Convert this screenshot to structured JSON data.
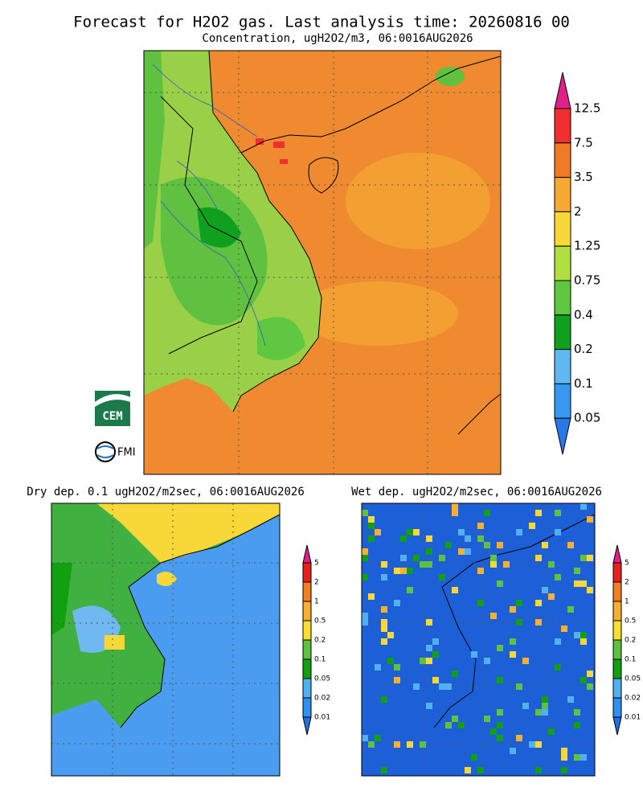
{
  "header": {
    "title": "Forecast for H2O2 gas. Last analysis time: 20260816 00",
    "subtitle": "Concentration, ugH2O2/m3, 06:0016AUG2026"
  },
  "main_map": {
    "colorbar": {
      "labels": [
        "12.5",
        "7.5",
        "3.5",
        "2",
        "1.25",
        "0.75",
        "0.4",
        "0.2",
        "0.1",
        "0.05"
      ],
      "colors": [
        "#e0208a",
        "#f03030",
        "#f07a28",
        "#f5a832",
        "#f8d838",
        "#b0e040",
        "#60c840",
        "#10a020",
        "#60b8f0",
        "#3898f0",
        "#2878e8"
      ]
    }
  },
  "logos": {
    "cem": "CEM",
    "fmi": "FMI"
  },
  "dry_dep": {
    "title": "Dry dep. 0.1 ugH2O2/m2sec, 06:0016AUG2026",
    "colorbar": {
      "labels": [
        "5",
        "2",
        "1",
        "0.5",
        "0.2",
        "0.1",
        "0.05",
        "0.02",
        "0.01"
      ],
      "colors": [
        "#e0208a",
        "#e82020",
        "#f08020",
        "#f8b030",
        "#f8e030",
        "#60c040",
        "#10a010",
        "#50b0f0",
        "#3090f0",
        "#2070e0"
      ]
    }
  },
  "wet_dep": {
    "title": "Wet dep. ugH2O2/m2sec, 06:0016AUG2026",
    "colorbar": {
      "labels": [
        "5",
        "2",
        "1",
        "0.5",
        "0.2",
        "0.1",
        "0.05",
        "0.02",
        "0.01"
      ],
      "colors": [
        "#e0208a",
        "#e82020",
        "#f08020",
        "#f8b030",
        "#f8e030",
        "#60c040",
        "#10a010",
        "#50b0f0",
        "#3090f0",
        "#2070e0"
      ]
    }
  }
}
